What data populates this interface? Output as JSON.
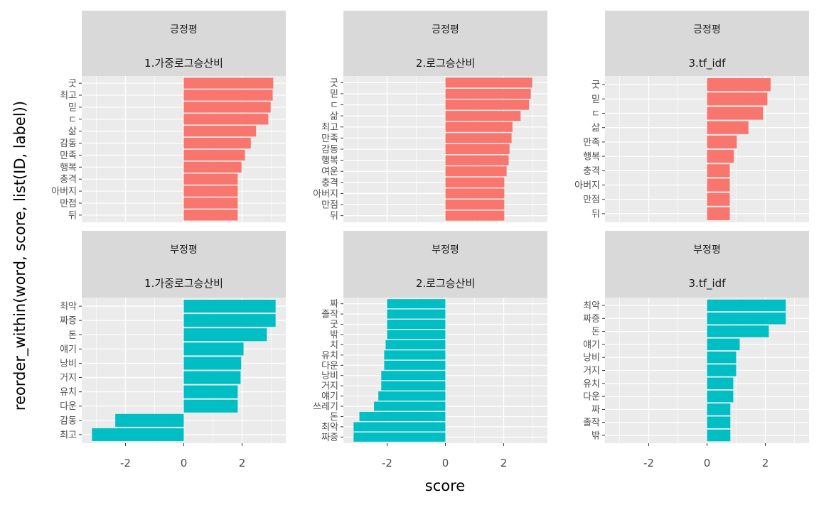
{
  "chart_data": {
    "type": "bar",
    "orientation": "horizontal",
    "xlabel": "score",
    "ylabel": "reorder_within(word, score, list(ID, label))",
    "xlim": [
      -3.5,
      3.5
    ],
    "x_ticks": [
      -2,
      0,
      2
    ],
    "x_tick_labels": [
      "-2",
      "0",
      "2"
    ],
    "grid": true,
    "legend": "none",
    "colors": {
      "긍정평": "#F8766D",
      "부정평": "#00BFC4",
      "panel_bg": "#EBEBEB",
      "strip_bg": "#D9D9D9",
      "grid": "#FFFFFF"
    },
    "row_labels": [
      "긍정평",
      "부정평"
    ],
    "col_labels": [
      "1.가중로그승산비",
      "2.로그승산비",
      "3.tf_idf"
    ],
    "panels": [
      {
        "row": "긍정평",
        "col": "1.가중로그승산비",
        "categories": [
          "굿",
          "최고",
          "믿",
          "ㄷ",
          "삶",
          "감동",
          "만족",
          "행복",
          "충격",
          "아버지",
          "만점",
          "뒤"
        ],
        "values": [
          3.07,
          3.05,
          2.98,
          2.9,
          2.48,
          2.3,
          2.1,
          1.98,
          1.85,
          1.85,
          1.85,
          1.85
        ]
      },
      {
        "row": "긍정평",
        "col": "2.로그승산비",
        "categories": [
          "굿",
          "믿",
          "ㄷ",
          "삶",
          "최고",
          "만족",
          "감동",
          "행복",
          "여운",
          "충격",
          "아버지",
          "만점",
          "뒤"
        ],
        "values": [
          2.98,
          2.93,
          2.87,
          2.58,
          2.3,
          2.27,
          2.2,
          2.17,
          2.1,
          2.02,
          2.02,
          2.02,
          2.02
        ]
      },
      {
        "row": "긍정평",
        "col": "3.tf_idf",
        "categories": [
          "굿",
          "믿",
          "ㄷ",
          "삶",
          "만족",
          "행복",
          "충격",
          "아버지",
          "만점",
          "뒤"
        ],
        "values": [
          2.18,
          2.07,
          1.92,
          1.42,
          1.02,
          0.92,
          0.78,
          0.78,
          0.78,
          0.78
        ]
      },
      {
        "row": "부정평",
        "col": "1.가중로그승산비",
        "categories": [
          "최악",
          "짜증",
          "돈",
          "얘기",
          "낭비",
          "거지",
          "유치",
          "다운",
          "감동",
          "최고"
        ],
        "values": [
          3.15,
          3.15,
          2.85,
          2.05,
          1.97,
          1.95,
          1.85,
          1.85,
          -2.35,
          -3.15
        ]
      },
      {
        "row": "부정평",
        "col": "2.로그승산비",
        "categories": [
          "짜",
          "졸작",
          "굿",
          "밖",
          "치",
          "유치",
          "다운",
          "낭비",
          "거지",
          "얘기",
          "쓰레기",
          "돈",
          "최악",
          "짜증"
        ],
        "values": [
          -2.0,
          -2.0,
          -2.0,
          -2.0,
          -2.05,
          -2.1,
          -2.1,
          -2.2,
          -2.2,
          -2.3,
          -2.45,
          -2.95,
          -3.15,
          -3.15
        ]
      },
      {
        "row": "부정평",
        "col": "3.tf_idf",
        "categories": [
          "최악",
          "짜증",
          "돈",
          "얘기",
          "낭비",
          "거지",
          "유치",
          "다운",
          "짜",
          "졸작",
          "밖"
        ],
        "values": [
          2.7,
          2.7,
          2.12,
          1.12,
          1.0,
          1.0,
          0.9,
          0.9,
          0.8,
          0.8,
          0.8
        ]
      }
    ]
  }
}
